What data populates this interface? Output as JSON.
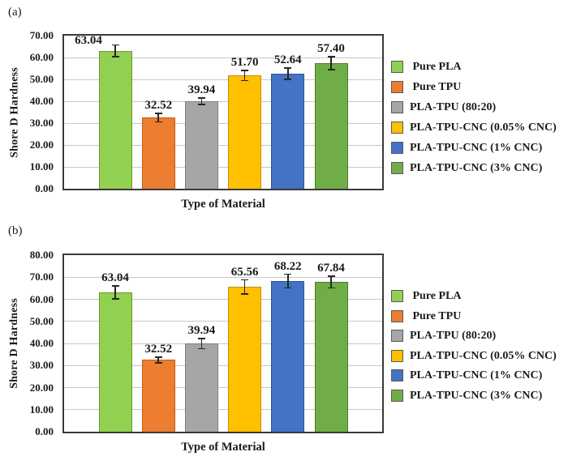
{
  "figure": {
    "background": "#FFFFFF",
    "text_color": "#1A1A1A"
  },
  "legend": {
    "items": [
      {
        "label": " Pure PLA",
        "fill": "#92D050"
      },
      {
        "label": " Pure TPU",
        "fill": "#ED7D31"
      },
      {
        "label": "PLA-TPU (80:20)",
        "fill": "#A6A6A6"
      },
      {
        "label": "PLA-TPU-CNC (0.05% CNC)",
        "fill": "#FFC000"
      },
      {
        "label": "PLA-TPU-CNC (1% CNC)",
        "fill": "#4472C4"
      },
      {
        "label": "PLA-TPU-CNC (3% CNC)",
        "fill": "#70AD47"
      }
    ]
  },
  "chart_data": [
    {
      "id": "a",
      "panel_label": "(a)",
      "type": "bar",
      "xlabel": "Type of Material",
      "ylabel": "Shore D Hardness",
      "ylim": [
        0,
        70
      ],
      "ytick_step": 10,
      "ytick_labels": [
        "70.00",
        "60.00",
        "50.00",
        "40.00",
        "30.00",
        "20.00",
        "10.00",
        "0.00"
      ],
      "grid": true,
      "legend_position": "right",
      "categories": [
        "Pure PLA",
        "Pure TPU",
        "PLA-TPU (80:20)",
        "PLA-TPU-CNC (0.05% CNC)",
        "PLA-TPU-CNC (1% CNC)",
        "PLA-TPU-CNC (3% CNC)"
      ],
      "values": [
        63.04,
        32.52,
        39.94,
        51.7,
        52.64,
        57.4
      ],
      "value_labels": [
        "63.04",
        "32.52",
        "39.94",
        "51.70",
        "52.64",
        "57.40"
      ],
      "error_bars_plus_minus": [
        3.0,
        2.2,
        1.8,
        2.6,
        2.9,
        3.2
      ],
      "bar_fill_colors": [
        "#92D050",
        "#ED7D31",
        "#A6A6A6",
        "#FFC000",
        "#4472C4",
        "#70AD47"
      ],
      "bar_stroke_colors": [
        "#6B9A2F",
        "#C55A11",
        "#7F7F7F",
        "#BF8F00",
        "#2F5597",
        "#4E7A27"
      ]
    },
    {
      "id": "b",
      "panel_label": "(b)",
      "type": "bar",
      "xlabel": "Type of Material",
      "ylabel": "Shore D Hardness",
      "ylim": [
        0,
        80
      ],
      "ytick_step": 10,
      "ytick_labels": [
        "80.00",
        "70.00",
        "60.00",
        "50.00",
        "40.00",
        "30.00",
        "20.00",
        "10.00",
        "0.00"
      ],
      "grid": true,
      "legend_position": "right",
      "categories": [
        "Pure PLA",
        "Pure TPU",
        "PLA-TPU (80:20)",
        "PLA-TPU-CNC (0.05% CNC)",
        "PLA-TPU-CNC (1% CNC)",
        "PLA-TPU-CNC (3% CNC)"
      ],
      "values": [
        63.04,
        32.52,
        39.94,
        65.56,
        68.22,
        67.84
      ],
      "value_labels": [
        "63.04",
        "32.52",
        "39.94",
        "65.56",
        "68.22",
        "67.84"
      ],
      "error_bars_plus_minus": [
        3.2,
        1.6,
        2.6,
        3.5,
        3.4,
        3.0
      ],
      "bar_fill_colors": [
        "#92D050",
        "#ED7D31",
        "#A6A6A6",
        "#FFC000",
        "#4472C4",
        "#70AD47"
      ],
      "bar_stroke_colors": [
        "#6B9A2F",
        "#C55A11",
        "#7F7F7F",
        "#BF8F00",
        "#2F5597",
        "#4E7A27"
      ]
    }
  ]
}
